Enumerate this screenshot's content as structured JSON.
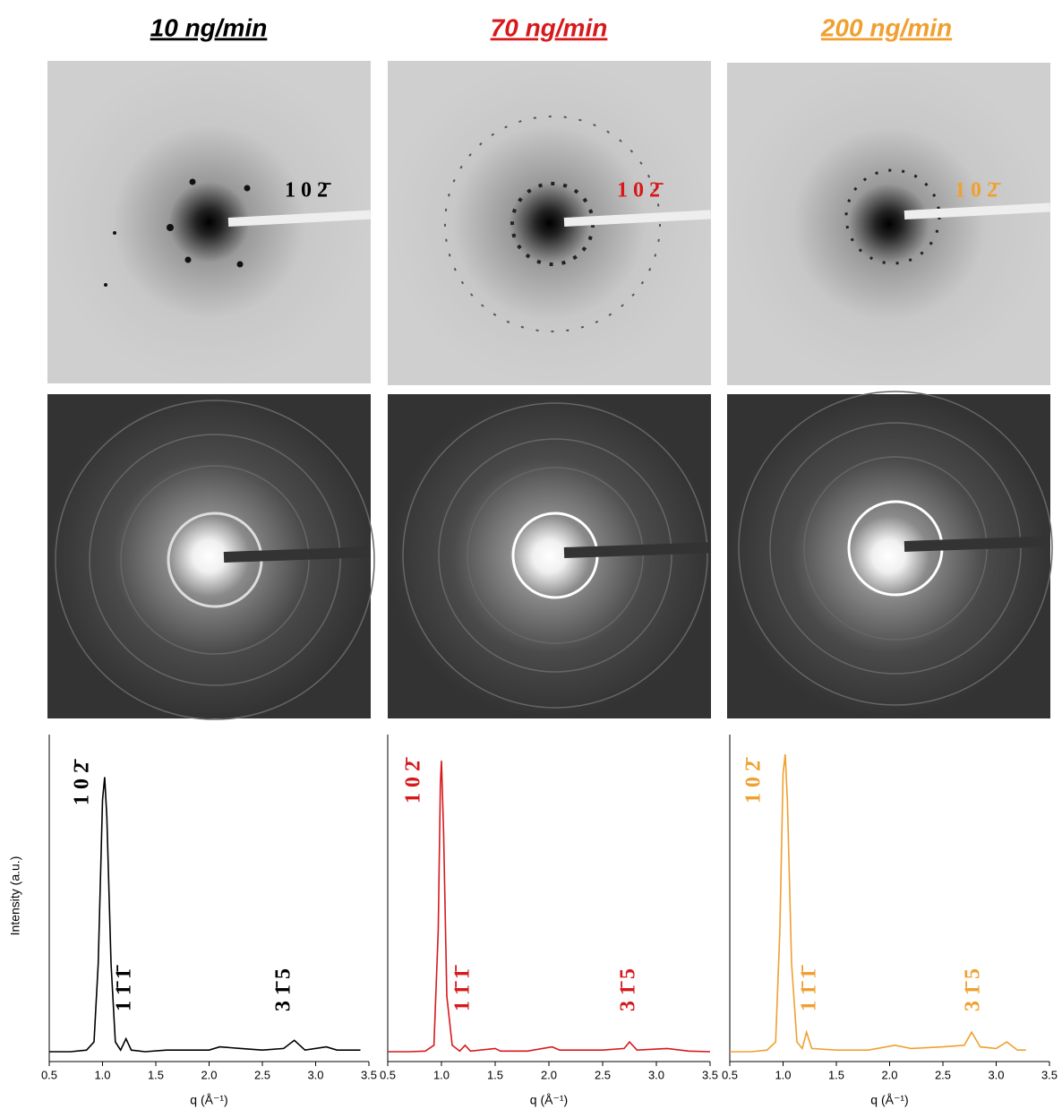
{
  "chart_data": [
    {
      "type": "line",
      "title": "10 ng/min",
      "color": "#000000",
      "image_label": "1 0 2̄",
      "ylabel": "Intensity (a.u.)",
      "xlabel": "q (Å⁻¹)",
      "xlim": [
        0.5,
        3.5
      ],
      "ylim": [
        0,
        1
      ],
      "xticks": [
        0.5,
        {
          "value": 1,
          "label": "1.0"
        },
        1.5,
        {
          "value": 2,
          "label": "2.0"
        },
        2.5,
        {
          "value": 3,
          "label": "3.0"
        },
        3.5
      ],
      "annotations": [
        "1 0 2̄",
        "1 1̄ 1̄",
        "3 1̄ 5"
      ],
      "x": [
        0.5,
        0.7,
        0.85,
        0.92,
        0.96,
        1.0,
        1.02,
        1.04,
        1.08,
        1.12,
        1.17,
        1.22,
        1.27,
        1.4,
        1.6,
        1.8,
        2.0,
        2.1,
        2.3,
        2.5,
        2.7,
        2.8,
        2.9,
        3.1,
        3.2,
        3.42
      ],
      "values": [
        0.03,
        0.03,
        0.035,
        0.06,
        0.3,
        0.8,
        0.87,
        0.75,
        0.3,
        0.06,
        0.035,
        0.07,
        0.035,
        0.03,
        0.035,
        0.035,
        0.035,
        0.045,
        0.04,
        0.035,
        0.04,
        0.065,
        0.035,
        0.045,
        0.035,
        0.035
      ]
    },
    {
      "type": "line",
      "title": "70 ng/min",
      "color": "#d7191c",
      "image_label": "1 0 2̄",
      "xlabel": "q (Å⁻¹)",
      "xlim": [
        0.5,
        3.5
      ],
      "ylim": [
        0,
        1
      ],
      "xticks": [
        0.5,
        {
          "value": 1,
          "label": "1.0"
        },
        1.5,
        {
          "value": 2,
          "label": "2.0"
        },
        2.5,
        {
          "value": 3,
          "label": "3.0"
        },
        3.5
      ],
      "annotations": [
        "1 0 2̄",
        "1 1̄ 1̄",
        "3 1̄ 5"
      ],
      "x": [
        0.5,
        0.7,
        0.85,
        0.93,
        0.97,
        0.99,
        1.0,
        1.02,
        1.05,
        1.1,
        1.17,
        1.22,
        1.27,
        1.5,
        1.55,
        1.8,
        2.03,
        2.1,
        2.3,
        2.5,
        2.7,
        2.75,
        2.82,
        3.1,
        3.3,
        3.5
      ],
      "values": [
        0.03,
        0.03,
        0.032,
        0.05,
        0.4,
        0.85,
        0.92,
        0.7,
        0.2,
        0.05,
        0.032,
        0.05,
        0.032,
        0.04,
        0.032,
        0.032,
        0.045,
        0.035,
        0.035,
        0.035,
        0.04,
        0.06,
        0.035,
        0.04,
        0.032,
        0.03
      ]
    },
    {
      "type": "line",
      "title": "200 ng/min",
      "color": "#f0a030",
      "image_label": "1 0 2̄",
      "xlabel": "q (Å⁻¹)",
      "xlim": [
        0.5,
        3.5
      ],
      "ylim": [
        0,
        1
      ],
      "xticks": [
        0.5,
        {
          "value": 1,
          "label": "1.0"
        },
        1.5,
        {
          "value": 2,
          "label": "2.0"
        },
        2.5,
        {
          "value": 3,
          "label": "3.0"
        },
        3.5
      ],
      "annotations": [
        "1 0 2̄",
        "1 1̄ 1̄",
        "3 1̄ 5"
      ],
      "x": [
        0.5,
        0.7,
        0.85,
        0.93,
        0.97,
        1.0,
        1.02,
        1.04,
        1.08,
        1.13,
        1.18,
        1.22,
        1.27,
        1.5,
        1.8,
        2.05,
        2.2,
        2.5,
        2.7,
        2.77,
        2.85,
        3.0,
        3.1,
        3.2,
        3.28
      ],
      "values": [
        0.03,
        0.03,
        0.035,
        0.06,
        0.4,
        0.88,
        0.94,
        0.8,
        0.3,
        0.06,
        0.04,
        0.09,
        0.04,
        0.035,
        0.035,
        0.05,
        0.04,
        0.045,
        0.05,
        0.09,
        0.045,
        0.04,
        0.06,
        0.035,
        0.035
      ]
    }
  ]
}
